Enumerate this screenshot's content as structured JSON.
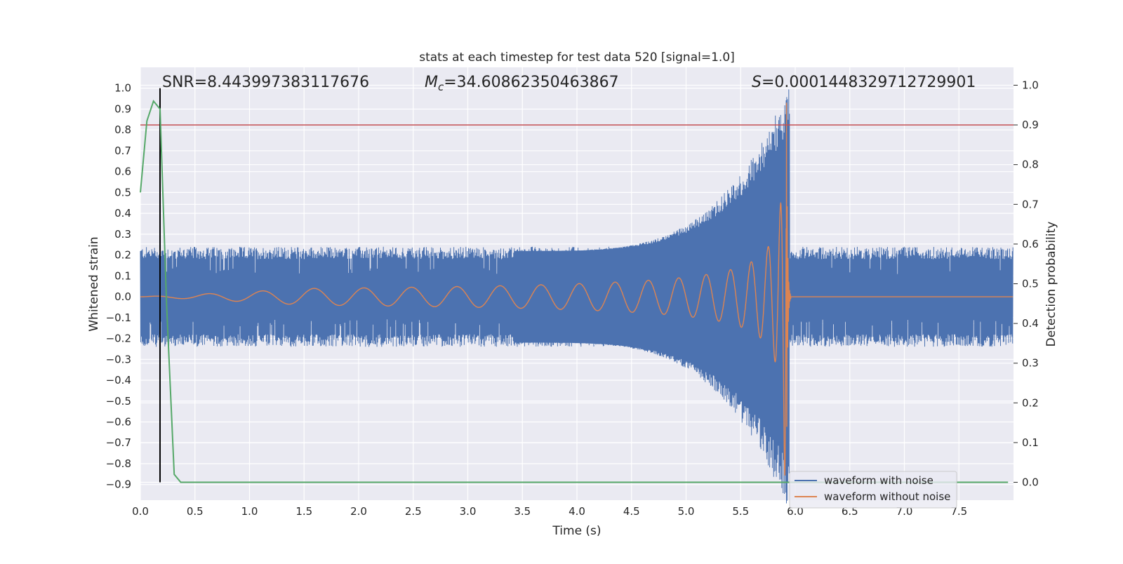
{
  "chart_data": {
    "type": "line",
    "title": "stats at each timestep for test data 520 [signal=1.0]",
    "xlabel": "Time (s)",
    "ylabel": "Whitened strain",
    "ylabel_right": "Detection probability",
    "xlim": [
      0.0,
      8.0
    ],
    "ylim_left": [
      -0.975,
      1.1
    ],
    "ylim_right": [
      -0.045,
      1.045
    ],
    "x_ticks": [
      "0.0",
      "0.5",
      "1.0",
      "1.5",
      "2.0",
      "2.5",
      "3.0",
      "3.5",
      "4.0",
      "4.5",
      "5.0",
      "5.5",
      "6.0",
      "6.5",
      "7.0",
      "7.5"
    ],
    "y_ticks_left": [
      "1.0",
      "0.9",
      "0.8",
      "0.7",
      "0.6",
      "0.5",
      "0.4",
      "0.3",
      "0.2",
      "0.1",
      "0.0",
      "−0.1",
      "−0.2",
      "−0.3",
      "−0.4",
      "−0.5",
      "−0.6",
      "−0.7",
      "−0.8",
      "−0.9"
    ],
    "y_ticks_right": [
      "1.0",
      "0.9",
      "0.8",
      "0.7",
      "0.6",
      "0.5",
      "0.4",
      "0.3",
      "0.2",
      "0.1",
      "0.0"
    ],
    "grid": true,
    "legend_position": "lower-right",
    "annotations": {
      "snr": "SNR=8.443997383117676",
      "mc_symbol": "M",
      "mc_subscript": "c",
      "mc_value": "=34.60862350463867",
      "s_symbol": "S",
      "s_value": "=0.0001448329712729901"
    },
    "series": [
      {
        "name": "waveform with noise",
        "axis": "left",
        "color": "#4c72b0",
        "description_envelope": {
          "noise_band_top": 0.24,
          "noise_band_bottom": -0.25,
          "merger_time": 5.92,
          "peak_top": 1.0,
          "peak_bottom": -0.99
        }
      },
      {
        "name": "waveform without noise",
        "axis": "left",
        "color": "#dd8452",
        "chirp": {
          "start_time": 0.0,
          "merger_time": 5.92,
          "ringdown_end": 5.96,
          "peak_amplitude": 1.0
        }
      },
      {
        "name": "",
        "axis": "right",
        "color": "#55a868",
        "x": [
          0.0,
          0.06,
          0.12,
          0.18,
          0.24,
          0.31,
          0.37,
          0.45,
          7.95
        ],
        "y": [
          0.73,
          0.91,
          0.96,
          0.94,
          0.45,
          0.02,
          0.0,
          0.0,
          0.0
        ]
      }
    ],
    "threshold_line": {
      "axis": "right",
      "value": 0.9,
      "color": "#c44e52"
    },
    "vertical_marker": {
      "x": 0.18,
      "color": "#000000"
    }
  }
}
